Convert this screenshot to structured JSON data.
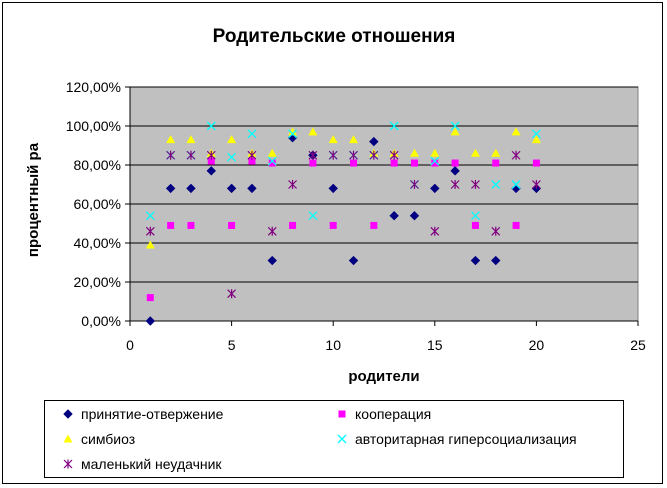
{
  "chart_data": {
    "type": "scatter",
    "title": "Родительские отношения",
    "xlabel": "родители",
    "ylabel": "процентный ра",
    "xlim": [
      0,
      25
    ],
    "ylim": [
      0,
      1.2
    ],
    "x_ticks": [
      0,
      5,
      10,
      15,
      20,
      25
    ],
    "y_ticks": [
      0,
      0.2,
      0.4,
      0.6,
      0.8,
      1.0,
      1.2
    ],
    "x_tick_labels": [
      "0",
      "5",
      "10",
      "15",
      "20",
      "25"
    ],
    "y_tick_labels": [
      "0,00%",
      "20,00%",
      "40,00%",
      "60,00%",
      "80,00%",
      "100,00%",
      "120,00%"
    ],
    "grid": "horizontal",
    "plot_background": "#c0c0c0",
    "legend_position": "bottom",
    "series": [
      {
        "name": "принятие-отвержение",
        "marker": "diamond",
        "color": "#000080",
        "points": [
          [
            1,
            0.0
          ],
          [
            2,
            0.68
          ],
          [
            3,
            0.68
          ],
          [
            4,
            0.77
          ],
          [
            5,
            0.68
          ],
          [
            6,
            0.68
          ],
          [
            7,
            0.31
          ],
          [
            8,
            0.94
          ],
          [
            9,
            0.85
          ],
          [
            10,
            0.68
          ],
          [
            11,
            0.31
          ],
          [
            12,
            0.92
          ],
          [
            13,
            0.54
          ],
          [
            14,
            0.54
          ],
          [
            15,
            0.68
          ],
          [
            16,
            0.77
          ],
          [
            17,
            0.31
          ],
          [
            18,
            0.31
          ],
          [
            19,
            0.68
          ],
          [
            20,
            0.68
          ]
        ]
      },
      {
        "name": "кооперация",
        "marker": "square",
        "color": "#ff00ff",
        "points": [
          [
            1,
            0.12
          ],
          [
            2,
            0.49
          ],
          [
            3,
            0.49
          ],
          [
            4,
            0.82
          ],
          [
            5,
            0.49
          ],
          [
            6,
            0.82
          ],
          [
            7,
            0.81
          ],
          [
            8,
            0.49
          ],
          [
            9,
            0.81
          ],
          [
            10,
            0.49
          ],
          [
            11,
            0.81
          ],
          [
            12,
            0.49
          ],
          [
            13,
            0.81
          ],
          [
            14,
            0.81
          ],
          [
            15,
            0.81
          ],
          [
            16,
            0.81
          ],
          [
            17,
            0.49
          ],
          [
            18,
            0.81
          ],
          [
            19,
            0.49
          ],
          [
            20,
            0.81
          ]
        ]
      },
      {
        "name": "симбиоз",
        "marker": "triangle",
        "color": "#ffff00",
        "points": [
          [
            1,
            0.39
          ],
          [
            2,
            0.93
          ],
          [
            3,
            0.93
          ],
          [
            4,
            0.86
          ],
          [
            5,
            0.93
          ],
          [
            6,
            0.86
          ],
          [
            7,
            0.86
          ],
          [
            8,
            0.97
          ],
          [
            9,
            0.97
          ],
          [
            10,
            0.93
          ],
          [
            11,
            0.93
          ],
          [
            12,
            0.86
          ],
          [
            13,
            0.86
          ],
          [
            14,
            0.86
          ],
          [
            15,
            0.86
          ],
          [
            16,
            0.97
          ],
          [
            17,
            0.86
          ],
          [
            18,
            0.86
          ],
          [
            19,
            0.97
          ],
          [
            20,
            0.93
          ]
        ]
      },
      {
        "name": "авторитарная гиперсоциализация",
        "marker": "x",
        "color": "#00ffff",
        "points": [
          [
            1,
            0.54
          ],
          [
            2,
            0.85
          ],
          [
            3,
            0.85
          ],
          [
            4,
            1.0
          ],
          [
            5,
            0.84
          ],
          [
            6,
            0.96
          ],
          [
            7,
            0.82
          ],
          [
            8,
            0.96
          ],
          [
            9,
            0.54
          ],
          [
            10,
            0.85
          ],
          [
            11,
            0.85
          ],
          [
            12,
            0.85
          ],
          [
            13,
            1.0
          ],
          [
            14,
            0.7
          ],
          [
            15,
            0.82
          ],
          [
            16,
            1.0
          ],
          [
            17,
            0.54
          ],
          [
            18,
            0.7
          ],
          [
            19,
            0.7
          ],
          [
            20,
            0.96
          ]
        ]
      },
      {
        "name": "маленький неудачник",
        "marker": "star",
        "color": "#800080",
        "points": [
          [
            1,
            0.46
          ],
          [
            2,
            0.85
          ],
          [
            3,
            0.85
          ],
          [
            4,
            0.85
          ],
          [
            5,
            0.14
          ],
          [
            6,
            0.85
          ],
          [
            7,
            0.46
          ],
          [
            8,
            0.7
          ],
          [
            9,
            0.85
          ],
          [
            10,
            0.85
          ],
          [
            11,
            0.85
          ],
          [
            12,
            0.85
          ],
          [
            13,
            0.85
          ],
          [
            14,
            0.7
          ],
          [
            15,
            0.46
          ],
          [
            16,
            0.7
          ],
          [
            17,
            0.7
          ],
          [
            18,
            0.46
          ],
          [
            19,
            0.85
          ],
          [
            20,
            0.7
          ]
        ]
      }
    ]
  }
}
